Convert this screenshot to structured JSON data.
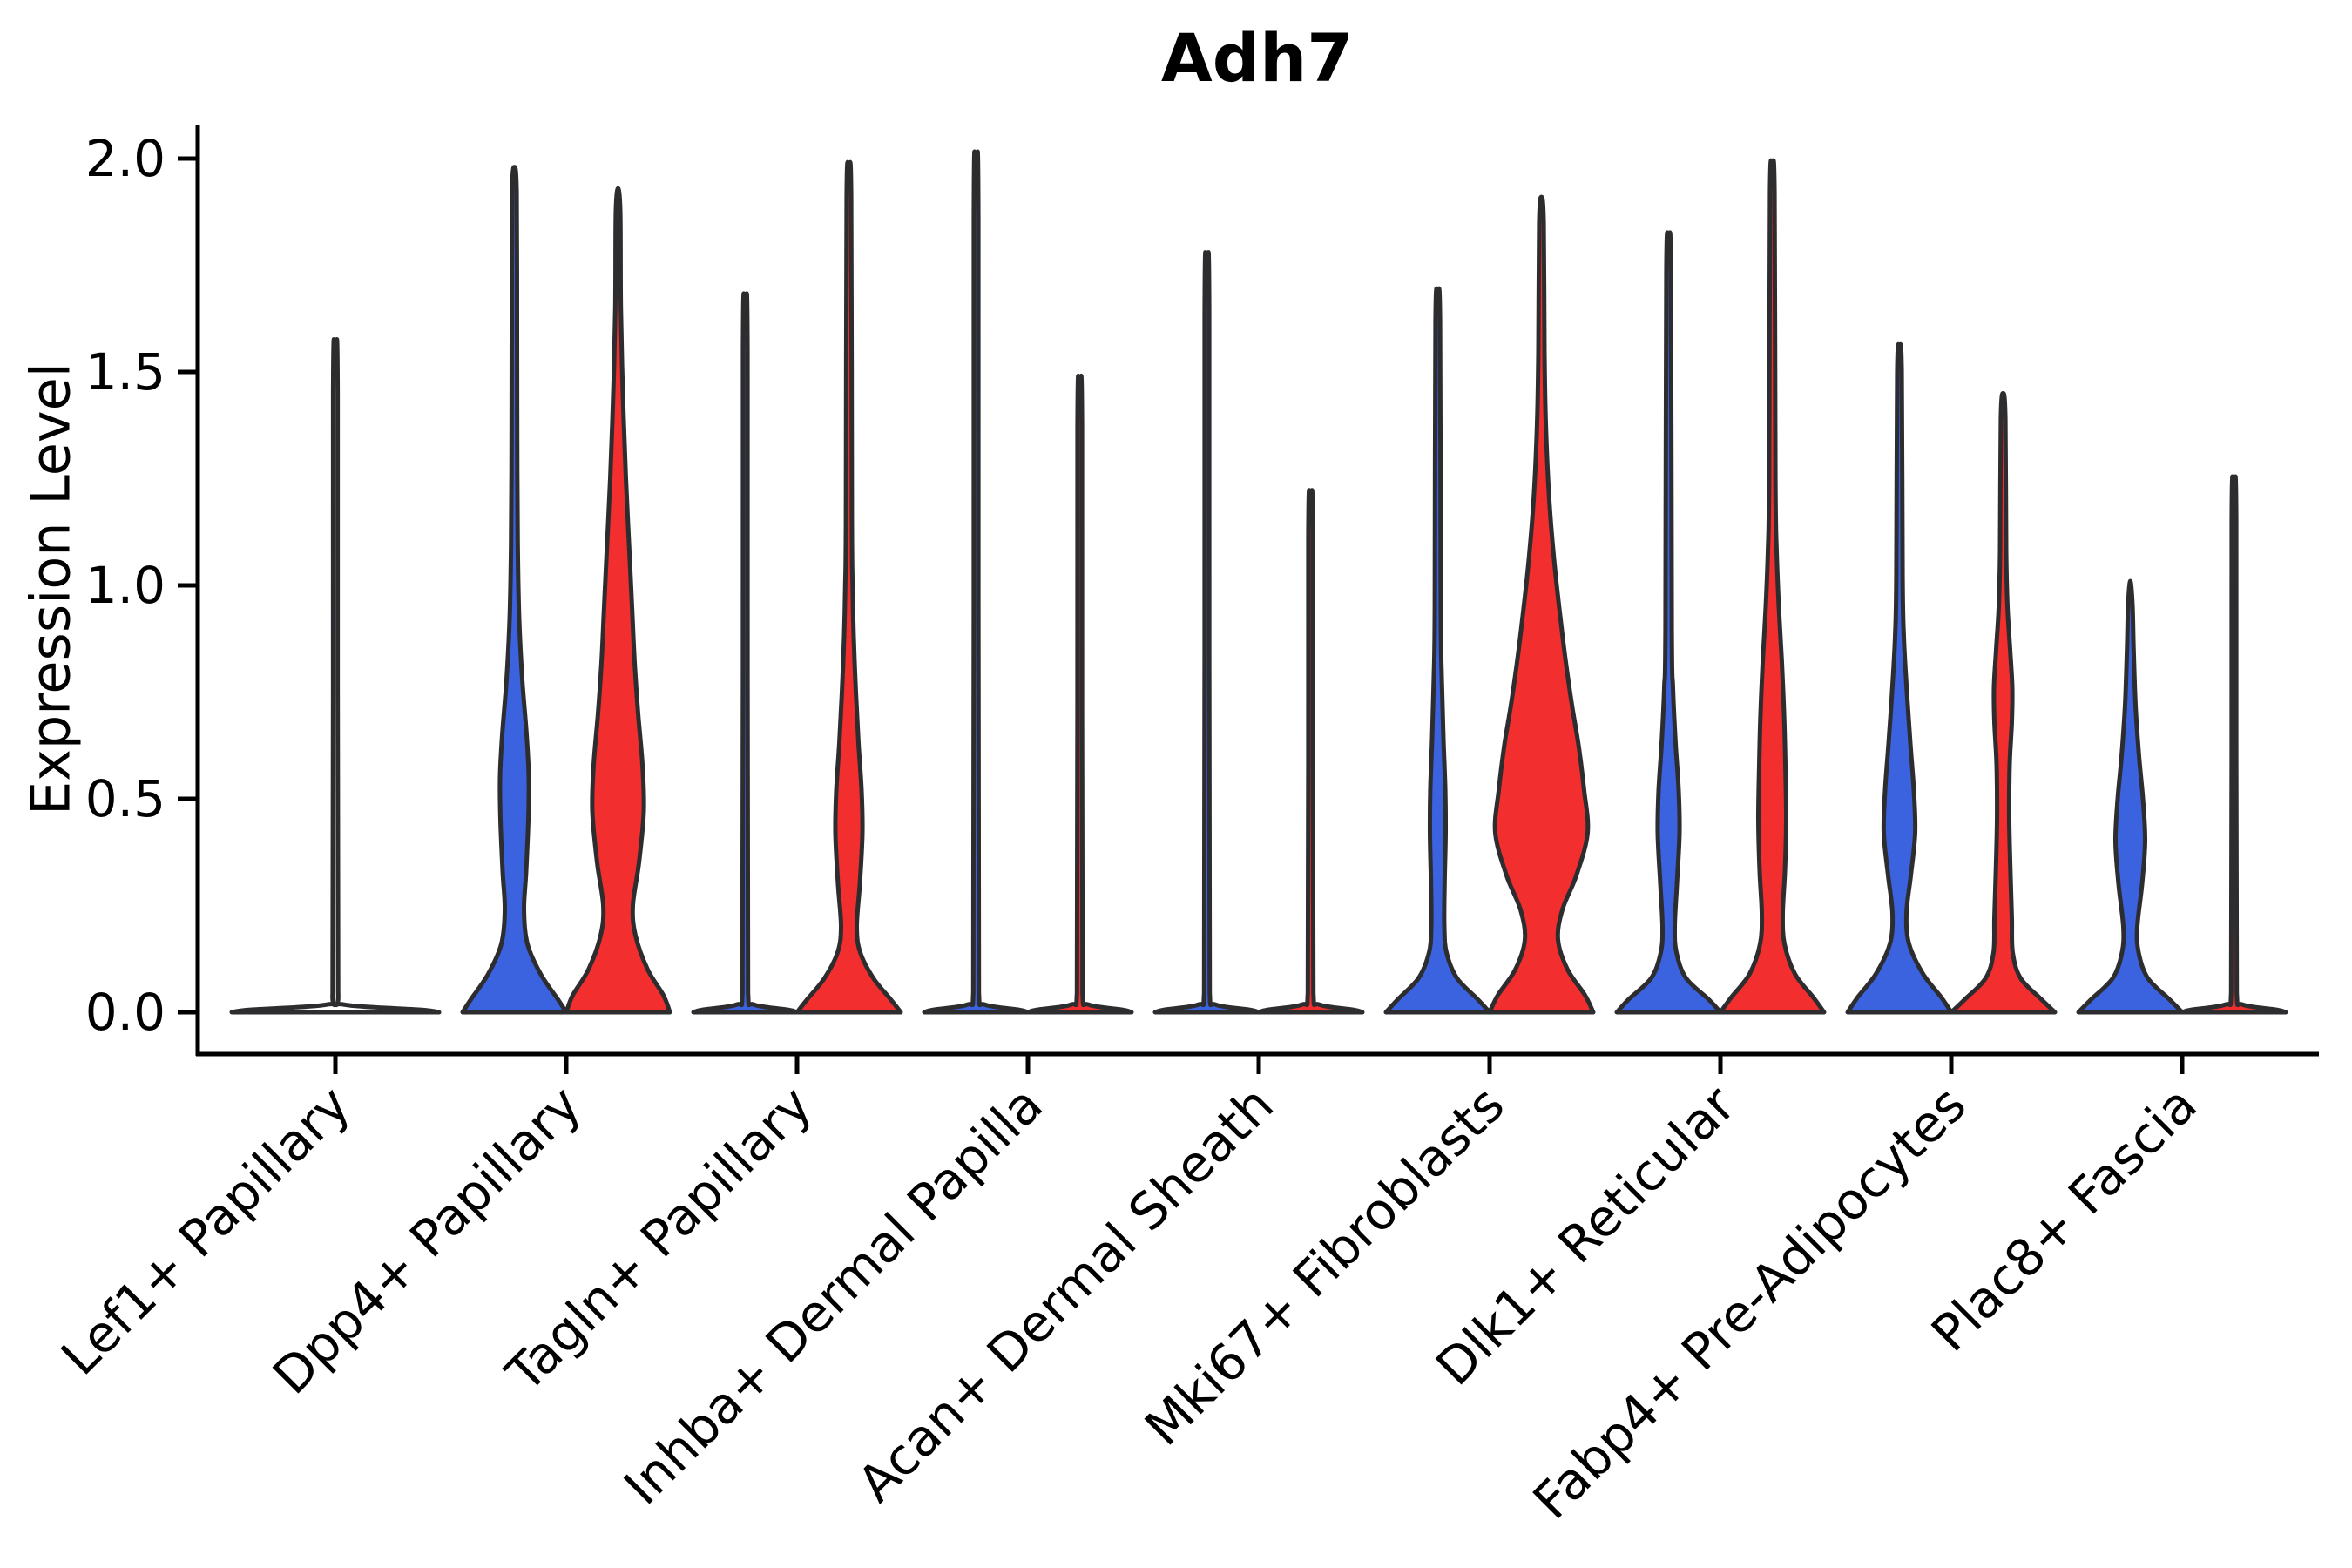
{
  "title": "Adh7",
  "y_axis": {
    "label": "Expression Level",
    "ticks": [
      {
        "label": "0.0",
        "value": 0.0
      },
      {
        "label": "0.5",
        "value": 0.5
      },
      {
        "label": "1.0",
        "value": 1.0
      },
      {
        "label": "1.5",
        "value": 1.5
      },
      {
        "label": "2.0",
        "value": 2.0
      }
    ]
  },
  "x_axis": {
    "categories": [
      "Lef1+ Papillary",
      "Dpp4+ Papillary",
      "Tagln+ Papillary",
      "Inhba+ Dermal Papilla",
      "Acan+ Dermal Sheath",
      "Mki67+ Fibroblasts",
      "Dlk1+ Reticular",
      "Fabp4+ Pre-Adipocytes",
      "Plac8+ Fascia"
    ]
  },
  "colors": {
    "blue": "#3B62DF",
    "red": "#F22E2E",
    "plain": "none",
    "outline": "#2D2D30",
    "axis": "#000000",
    "background": "#FFFFFF"
  },
  "chart_data": {
    "type": "violin",
    "title": "Adh7",
    "ylabel": "Expression Level",
    "ylim": [
      0,
      2.05
    ],
    "grid": false,
    "legend": "none",
    "split_sides": {
      "left": "blue",
      "right": "red"
    },
    "groups": [
      {
        "category": "Lef1+ Papillary",
        "violins": [
          {
            "side": "full",
            "color": "plain",
            "shape": "flat",
            "max": 1.51
          }
        ]
      },
      {
        "category": "Dpp4+ Papillary",
        "violins": [
          {
            "side": "left",
            "color": "blue",
            "shape": "density",
            "max": 1.98,
            "profile": [
              [
                0,
                59.5
              ],
              [
                0.03,
                50
              ],
              [
                0.09,
                30
              ],
              [
                0.16,
                15
              ],
              [
                0.24,
                11
              ],
              [
                0.33,
                13.5
              ],
              [
                0.45,
                16
              ],
              [
                0.55,
                16.5
              ],
              [
                0.65,
                14
              ],
              [
                0.78,
                9
              ],
              [
                0.92,
                5.5
              ],
              [
                1.1,
                3.8
              ],
              [
                1.35,
                3.2
              ],
              [
                1.6,
                3
              ]
            ]
          },
          {
            "side": "right",
            "color": "red",
            "shape": "density",
            "max": 1.93,
            "profile": [
              [
                0,
                59.5
              ],
              [
                0.04,
                52
              ],
              [
                0.1,
                34
              ],
              [
                0.18,
                20
              ],
              [
                0.25,
                17
              ],
              [
                0.35,
                24
              ],
              [
                0.47,
                29.5
              ],
              [
                0.58,
                28
              ],
              [
                0.7,
                23
              ],
              [
                0.82,
                19
              ],
              [
                0.95,
                16
              ],
              [
                1.1,
                12.5
              ],
              [
                1.25,
                9
              ],
              [
                1.45,
                5.5
              ],
              [
                1.65,
                3.2
              ]
            ]
          }
        ]
      },
      {
        "category": "Tagln+ Papillary",
        "violins": [
          {
            "side": "left",
            "color": "blue",
            "shape": "flat",
            "max": 1.61
          },
          {
            "side": "right",
            "color": "red",
            "shape": "density",
            "max": 1.97,
            "profile": [
              [
                0,
                59.5
              ],
              [
                0.03,
                48
              ],
              [
                0.08,
                28
              ],
              [
                0.14,
                13
              ],
              [
                0.2,
                9
              ],
              [
                0.3,
                12.5
              ],
              [
                0.42,
                15.5
              ],
              [
                0.52,
                14.5
              ],
              [
                0.63,
                11
              ],
              [
                0.75,
                8
              ],
              [
                0.88,
                5.5
              ],
              [
                1.0,
                4.2
              ],
              [
                1.15,
                3.4
              ]
            ]
          }
        ]
      },
      {
        "category": "Inhba+ Dermal Papilla",
        "violins": [
          {
            "side": "left",
            "color": "blue",
            "shape": "flat",
            "max": 1.92
          },
          {
            "side": "right",
            "color": "red",
            "shape": "flat",
            "max": 1.43
          }
        ]
      },
      {
        "category": "Acan+ Dermal Sheath",
        "violins": [
          {
            "side": "left",
            "color": "blue",
            "shape": "flat",
            "max": 1.7
          },
          {
            "side": "right",
            "color": "red",
            "shape": "flat",
            "max": 1.18
          }
        ]
      },
      {
        "category": "Mki67+ Fibroblasts",
        "violins": [
          {
            "side": "left",
            "color": "blue",
            "shape": "density",
            "max": 1.68,
            "profile": [
              [
                0,
                59.5
              ],
              [
                0.03,
                46
              ],
              [
                0.08,
                22
              ],
              [
                0.14,
                10
              ],
              [
                0.2,
                7.5
              ],
              [
                0.3,
                7.8
              ],
              [
                0.42,
                9
              ],
              [
                0.52,
                8.6
              ],
              [
                0.64,
                6.5
              ],
              [
                0.78,
                4.6
              ],
              [
                0.95,
                3.4
              ]
            ]
          },
          {
            "side": "right",
            "color": "red",
            "shape": "density",
            "max": 1.91,
            "profile": [
              [
                0,
                59.5
              ],
              [
                0.04,
                50
              ],
              [
                0.1,
                30
              ],
              [
                0.17,
                19
              ],
              [
                0.24,
                24
              ],
              [
                0.32,
                40
              ],
              [
                0.42,
                53
              ],
              [
                0.52,
                49
              ],
              [
                0.62,
                43
              ],
              [
                0.72,
                35
              ],
              [
                0.82,
                28
              ],
              [
                0.92,
                22
              ],
              [
                1.05,
                15
              ],
              [
                1.2,
                9
              ],
              [
                1.38,
                5
              ],
              [
                1.55,
                3.5
              ]
            ]
          }
        ]
      },
      {
        "category": "Dlk1+ Reticular",
        "violins": [
          {
            "side": "left",
            "color": "blue",
            "shape": "density",
            "max": 1.8,
            "profile": [
              [
                0,
                59.5
              ],
              [
                0.03,
                46
              ],
              [
                0.08,
                20
              ],
              [
                0.14,
                9
              ],
              [
                0.2,
                7
              ],
              [
                0.3,
                9.5
              ],
              [
                0.42,
                12.5
              ],
              [
                0.52,
                11.5
              ],
              [
                0.63,
                8
              ],
              [
                0.76,
                5
              ],
              [
                0.9,
                3.6
              ]
            ]
          },
          {
            "side": "right",
            "color": "red",
            "shape": "density",
            "max": 1.98,
            "profile": [
              [
                0,
                59.5
              ],
              [
                0.035,
                47
              ],
              [
                0.09,
                26
              ],
              [
                0.16,
                14
              ],
              [
                0.23,
                12
              ],
              [
                0.33,
                14.5
              ],
              [
                0.45,
                16
              ],
              [
                0.58,
                15
              ],
              [
                0.7,
                13.5
              ],
              [
                0.82,
                11
              ],
              [
                0.95,
                7.5
              ],
              [
                1.08,
                5
              ],
              [
                1.25,
                3.6
              ]
            ]
          }
        ]
      },
      {
        "category": "Fabp4+ Pre-Adipocytes",
        "violins": [
          {
            "side": "left",
            "color": "blue",
            "shape": "density",
            "max": 1.56,
            "profile": [
              [
                0,
                59.5
              ],
              [
                0.035,
                48
              ],
              [
                0.09,
                27
              ],
              [
                0.16,
                11
              ],
              [
                0.23,
                8
              ],
              [
                0.32,
                13
              ],
              [
                0.42,
                18
              ],
              [
                0.52,
                16.5
              ],
              [
                0.63,
                12.5
              ],
              [
                0.75,
                8.5
              ],
              [
                0.88,
                5
              ],
              [
                1.02,
                3.6
              ]
            ]
          },
          {
            "side": "right",
            "color": "red",
            "shape": "density",
            "max": 1.45,
            "profile": [
              [
                0,
                59.5
              ],
              [
                0.03,
                44
              ],
              [
                0.08,
                20
              ],
              [
                0.14,
                11
              ],
              [
                0.22,
                10
              ],
              [
                0.32,
                8.5
              ],
              [
                0.45,
                7
              ],
              [
                0.58,
                7.5
              ],
              [
                0.68,
                10
              ],
              [
                0.76,
                10.5
              ],
              [
                0.85,
                8
              ],
              [
                0.95,
                5
              ],
              [
                1.08,
                3.5
              ]
            ]
          }
        ]
      },
      {
        "category": "Plac8+ Fascia",
        "violins": [
          {
            "side": "left",
            "color": "blue",
            "shape": "density",
            "max": 1.01,
            "profile": [
              [
                0,
                59.5
              ],
              [
                0.03,
                45
              ],
              [
                0.08,
                20
              ],
              [
                0.14,
                9.5
              ],
              [
                0.2,
                8
              ],
              [
                0.3,
                13.5
              ],
              [
                0.4,
                17
              ],
              [
                0.5,
                14.5
              ],
              [
                0.6,
                10
              ],
              [
                0.72,
                6
              ],
              [
                0.85,
                3.8
              ]
            ]
          },
          {
            "side": "right",
            "color": "red",
            "shape": "flat",
            "max": 1.21
          }
        ]
      }
    ]
  }
}
